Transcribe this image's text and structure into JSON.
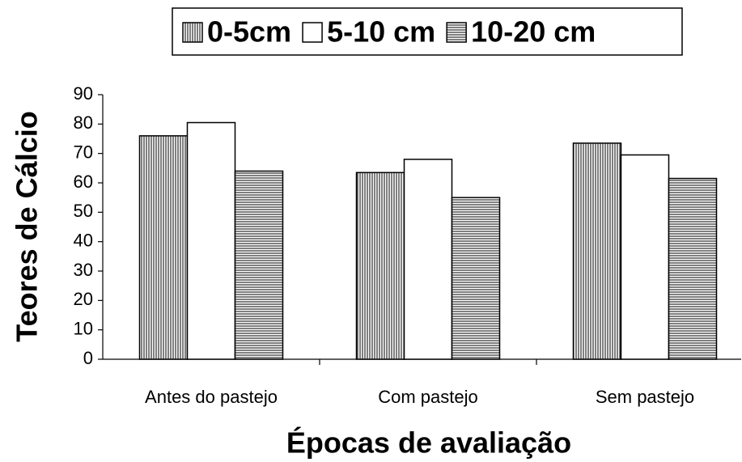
{
  "chart_data": {
    "type": "bar",
    "x_label": "Épocas de avaliação",
    "y_label": "Teores de Cálcio",
    "categories": [
      "Antes do pastejo",
      "Com pastejo",
      "Sem pastejo"
    ],
    "series": [
      {
        "name": "0-5cm",
        "color": "#000000",
        "pattern": "vertical",
        "values": [
          76,
          63.5,
          73.5
        ]
      },
      {
        "name": "5-10 cm",
        "color": "#000000",
        "pattern": "none",
        "values": [
          80.5,
          68,
          69.5
        ]
      },
      {
        "name": "10-20 cm",
        "color": "#000000",
        "pattern": "horizontal",
        "values": [
          64,
          55,
          61.5
        ]
      }
    ],
    "ylim": [
      0,
      90
    ],
    "yticks": [
      0,
      10,
      20,
      30,
      40,
      50,
      60,
      70,
      80,
      90
    ],
    "legend": "top"
  }
}
